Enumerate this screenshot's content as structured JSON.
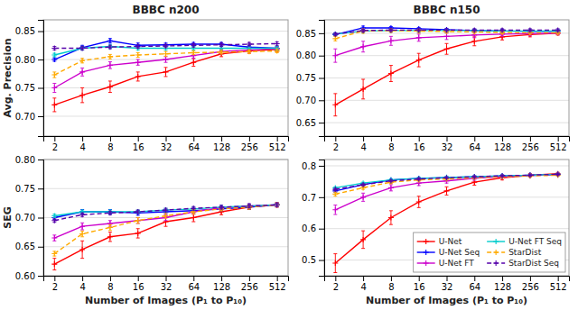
{
  "chart_data": [
    {
      "type": "line",
      "title": "BBBC n200",
      "y_label": "Avg. Precision",
      "x": [
        2,
        4,
        8,
        16,
        32,
        64,
        128,
        256,
        512
      ],
      "log": "x",
      "xlim": [
        1.515716566510398,
        675.5880503157217
      ],
      "xticks": [
        2,
        4,
        8,
        16,
        32,
        64,
        128,
        256,
        512
      ],
      "ylim": [
        0.665,
        0.87
      ],
      "yticks": [
        {
          "value": 0.7,
          "label": "0.70"
        },
        0.75,
        {
          "value": 0.8,
          "label": "0.80"
        },
        0.85
      ],
      "grid": "y",
      "series": [
        {
          "name": "U-Net",
          "color": "#ff0000",
          "line_style": "solid",
          "marker": "plus",
          "values": [
            0.72,
            0.737,
            0.752,
            0.77,
            0.778,
            0.795,
            0.81,
            0.815,
            0.818
          ],
          "errors": [
            0.012,
            0.013,
            0.01,
            0.008,
            0.008,
            0.007,
            0.005,
            0.004,
            0.004
          ]
        },
        {
          "name": "U-Net Seq",
          "color": "#0000ff",
          "line_style": "solid",
          "marker": "plus",
          "values": [
            0.8,
            0.821,
            0.833,
            0.825,
            0.826,
            0.827,
            0.827,
            0.822,
            0.82
          ],
          "errors": [
            0.003,
            0.004,
            0.004,
            0.004,
            0.003,
            0.003,
            0.003,
            0.003,
            0.003
          ]
        },
        {
          "name": "U-Net FT",
          "color": "#cc00cc",
          "line_style": "solid",
          "marker": "plus",
          "values": [
            0.75,
            0.778,
            0.79,
            0.795,
            0.8,
            0.807,
            0.814,
            0.817,
            0.819
          ],
          "errors": [
            0.008,
            0.007,
            0.006,
            0.005,
            0.005,
            0.005,
            0.004,
            0.004,
            0.003
          ]
        },
        {
          "name": "U-Net FT Seq",
          "color": "#00cccc",
          "line_style": "solid",
          "marker": "plus",
          "values": [
            0.808,
            0.82,
            0.823,
            0.82,
            0.82,
            0.82,
            0.82,
            0.82,
            0.82
          ],
          "errors": [
            0.003,
            0.003,
            0.003,
            0.003,
            0.003,
            0.003,
            0.003,
            0.003,
            0.003
          ]
        },
        {
          "name": "StarDist",
          "color": "#ffaa00",
          "line_style": "dashed",
          "marker": "plus",
          "values": [
            0.773,
            0.798,
            0.805,
            0.808,
            0.81,
            0.812,
            0.813,
            0.814,
            0.815
          ],
          "errors": [
            0.005,
            0.004,
            0.004,
            0.004,
            0.004,
            0.003,
            0.003,
            0.003,
            0.003
          ]
        },
        {
          "name": "StarDist Seq",
          "color": "#5500aa",
          "line_style": "dashed",
          "marker": "plus",
          "values": [
            0.82,
            0.82,
            0.822,
            0.823,
            0.824,
            0.825,
            0.826,
            0.827,
            0.828
          ],
          "errors": [
            0.003,
            0.003,
            0.003,
            0.003,
            0.003,
            0.003,
            0.003,
            0.003,
            0.003
          ]
        }
      ]
    },
    {
      "type": "line",
      "title": "BBBC n150",
      "x": [
        2,
        4,
        8,
        16,
        32,
        64,
        128,
        256,
        512
      ],
      "log": "x",
      "xlim": [
        1.515716566510398,
        675.5880503157217
      ],
      "xticks": [
        2,
        4,
        8,
        16,
        32,
        64,
        128,
        256,
        512
      ],
      "ylim": [
        0.62,
        0.88
      ],
      "yticks": [
        0.65,
        {
          "value": 0.7,
          "label": "0.70"
        },
        0.75,
        {
          "value": 0.8,
          "label": "0.80"
        },
        0.85
      ],
      "grid": "y",
      "series": [
        {
          "name": "U-Net",
          "color": "#ff0000",
          "line_style": "solid",
          "marker": "plus",
          "values": [
            0.69,
            0.725,
            0.76,
            0.79,
            0.815,
            0.832,
            0.842,
            0.847,
            0.85
          ],
          "errors": [
            0.025,
            0.022,
            0.018,
            0.015,
            0.012,
            0.01,
            0.007,
            0.005,
            0.004
          ]
        },
        {
          "name": "U-Net Seq",
          "color": "#0000ff",
          "line_style": "solid",
          "marker": "plus",
          "values": [
            0.847,
            0.862,
            0.862,
            0.86,
            0.858,
            0.856,
            0.855,
            0.854,
            0.854
          ],
          "errors": [
            0.003,
            0.004,
            0.003,
            0.003,
            0.003,
            0.003,
            0.003,
            0.003,
            0.003
          ]
        },
        {
          "name": "U-Net FT",
          "color": "#cc00cc",
          "line_style": "solid",
          "marker": "plus",
          "values": [
            0.8,
            0.82,
            0.833,
            0.84,
            0.843,
            0.846,
            0.848,
            0.849,
            0.85
          ],
          "errors": [
            0.015,
            0.012,
            0.01,
            0.008,
            0.007,
            0.006,
            0.004,
            0.004,
            0.003
          ]
        },
        {
          "name": "U-Net FT Seq",
          "color": "#00cccc",
          "line_style": "solid",
          "marker": "plus",
          "values": [
            0.848,
            0.855,
            0.856,
            0.856,
            0.856,
            0.856,
            0.855,
            0.855,
            0.855
          ],
          "errors": [
            0.003,
            0.003,
            0.003,
            0.003,
            0.003,
            0.003,
            0.003,
            0.003,
            0.003
          ]
        },
        {
          "name": "StarDist",
          "color": "#ffaa00",
          "line_style": "dashed",
          "marker": "plus",
          "values": [
            0.838,
            0.855,
            0.856,
            0.855,
            0.854,
            0.853,
            0.852,
            0.851,
            0.851
          ],
          "errors": [
            0.005,
            0.005,
            0.004,
            0.004,
            0.003,
            0.003,
            0.003,
            0.003,
            0.003
          ]
        },
        {
          "name": "StarDist Seq",
          "color": "#5500aa",
          "line_style": "dashed",
          "marker": "plus",
          "values": [
            0.848,
            0.856,
            0.857,
            0.857,
            0.857,
            0.857,
            0.857,
            0.857,
            0.857
          ],
          "errors": [
            0.003,
            0.003,
            0.003,
            0.003,
            0.003,
            0.003,
            0.003,
            0.003,
            0.003
          ]
        }
      ]
    },
    {
      "type": "line",
      "y_label": "SEG",
      "x_label": "Number of Images (P₁ to P₁₀)",
      "x": [
        2,
        4,
        8,
        16,
        32,
        64,
        128,
        256,
        512
      ],
      "log": "x",
      "xlim": [
        1.515716566510398,
        675.5880503157217
      ],
      "xticks": [
        2,
        4,
        8,
        16,
        32,
        64,
        128,
        256,
        512
      ],
      "ylim": [
        0.6,
        0.8
      ],
      "yticks": [
        {
          "value": 0.6,
          "label": "0.60"
        },
        0.65,
        {
          "value": 0.7,
          "label": "0.70"
        },
        0.75,
        {
          "value": 0.8,
          "label": "0.80"
        }
      ],
      "grid": "y",
      "series": [
        {
          "name": "U-Net",
          "color": "#ff0000",
          "line_style": "solid",
          "marker": "plus",
          "values": [
            0.62,
            0.645,
            0.667,
            0.673,
            0.693,
            0.7,
            0.71,
            0.718,
            0.722
          ],
          "errors": [
            0.01,
            0.015,
            0.008,
            0.008,
            0.008,
            0.007,
            0.005,
            0.004,
            0.004
          ]
        },
        {
          "name": "U-Net Seq",
          "color": "#0000ff",
          "line_style": "solid",
          "marker": "plus",
          "values": [
            0.7,
            0.71,
            0.71,
            0.708,
            0.71,
            0.712,
            0.715,
            0.718,
            0.722
          ],
          "errors": [
            0.003,
            0.004,
            0.004,
            0.004,
            0.003,
            0.003,
            0.003,
            0.003,
            0.003
          ]
        },
        {
          "name": "U-Net FT",
          "color": "#cc00cc",
          "line_style": "solid",
          "marker": "plus",
          "values": [
            0.665,
            0.685,
            0.69,
            0.695,
            0.7,
            0.71,
            0.717,
            0.72,
            0.722
          ],
          "errors": [
            0.005,
            0.006,
            0.005,
            0.005,
            0.005,
            0.004,
            0.004,
            0.004,
            0.003
          ]
        },
        {
          "name": "U-Net FT Seq",
          "color": "#00cccc",
          "line_style": "solid",
          "marker": "plus",
          "values": [
            0.703,
            0.71,
            0.71,
            0.71,
            0.713,
            0.715,
            0.718,
            0.72,
            0.722
          ],
          "errors": [
            0.003,
            0.003,
            0.003,
            0.003,
            0.003,
            0.003,
            0.003,
            0.003,
            0.003
          ]
        },
        {
          "name": "StarDist",
          "color": "#ffaa00",
          "line_style": "dashed",
          "marker": "plus",
          "values": [
            0.638,
            0.672,
            0.683,
            0.695,
            0.703,
            0.71,
            0.715,
            0.718,
            0.722
          ],
          "errors": [
            0.004,
            0.005,
            0.005,
            0.005,
            0.004,
            0.004,
            0.003,
            0.003,
            0.003
          ]
        },
        {
          "name": "StarDist Seq",
          "color": "#5500aa",
          "line_style": "dashed",
          "marker": "plus",
          "values": [
            0.695,
            0.705,
            0.708,
            0.71,
            0.713,
            0.716,
            0.718,
            0.72,
            0.722
          ],
          "errors": [
            0.003,
            0.003,
            0.003,
            0.003,
            0.003,
            0.003,
            0.003,
            0.003,
            0.003
          ]
        }
      ]
    },
    {
      "type": "line",
      "x_label": "Number of Images (P₁ to P₁₀)",
      "x": [
        2,
        4,
        8,
        16,
        32,
        64,
        128,
        256,
        512
      ],
      "log": "x",
      "xlim": [
        1.515716566510398,
        675.5880503157217
      ],
      "xticks": [
        2,
        4,
        8,
        16,
        32,
        64,
        128,
        256,
        512
      ],
      "ylim": [
        0.45,
        0.82
      ],
      "yticks": [
        0.5,
        0.6,
        0.7,
        0.8
      ],
      "grid": "y",
      "legend": "lower right",
      "series": [
        {
          "name": "U-Net",
          "color": "#ff0000",
          "line_style": "solid",
          "marker": "plus",
          "values": [
            0.49,
            0.565,
            0.635,
            0.685,
            0.72,
            0.748,
            0.762,
            0.77,
            0.775
          ],
          "errors": [
            0.03,
            0.028,
            0.022,
            0.018,
            0.013,
            0.01,
            0.007,
            0.005,
            0.004
          ]
        },
        {
          "name": "U-Net Seq",
          "color": "#0000ff",
          "line_style": "solid",
          "marker": "plus",
          "values": [
            0.72,
            0.74,
            0.755,
            0.76,
            0.762,
            0.765,
            0.768,
            0.77,
            0.772
          ],
          "errors": [
            0.004,
            0.004,
            0.003,
            0.003,
            0.003,
            0.003,
            0.003,
            0.003,
            0.003
          ]
        },
        {
          "name": "U-Net FT",
          "color": "#cc00cc",
          "line_style": "solid",
          "marker": "plus",
          "values": [
            0.66,
            0.7,
            0.73,
            0.745,
            0.752,
            0.76,
            0.765,
            0.769,
            0.772
          ],
          "errors": [
            0.015,
            0.013,
            0.01,
            0.008,
            0.007,
            0.006,
            0.004,
            0.004,
            0.003
          ]
        },
        {
          "name": "U-Net FT Seq",
          "color": "#00cccc",
          "line_style": "solid",
          "marker": "plus",
          "values": [
            0.73,
            0.745,
            0.755,
            0.76,
            0.763,
            0.765,
            0.768,
            0.77,
            0.773
          ],
          "errors": [
            0.003,
            0.003,
            0.003,
            0.003,
            0.003,
            0.003,
            0.003,
            0.003,
            0.003
          ]
        },
        {
          "name": "StarDist",
          "color": "#ffaa00",
          "line_style": "dashed",
          "marker": "plus",
          "values": [
            0.71,
            0.73,
            0.748,
            0.755,
            0.758,
            0.762,
            0.765,
            0.768,
            0.77
          ],
          "errors": [
            0.006,
            0.005,
            0.004,
            0.004,
            0.003,
            0.003,
            0.003,
            0.003,
            0.003
          ]
        },
        {
          "name": "StarDist Seq",
          "color": "#5500aa",
          "line_style": "dashed",
          "marker": "plus",
          "values": [
            0.725,
            0.74,
            0.752,
            0.758,
            0.762,
            0.765,
            0.768,
            0.77,
            0.773
          ],
          "errors": [
            0.003,
            0.003,
            0.003,
            0.003,
            0.003,
            0.003,
            0.003,
            0.003,
            0.003
          ]
        }
      ]
    }
  ]
}
